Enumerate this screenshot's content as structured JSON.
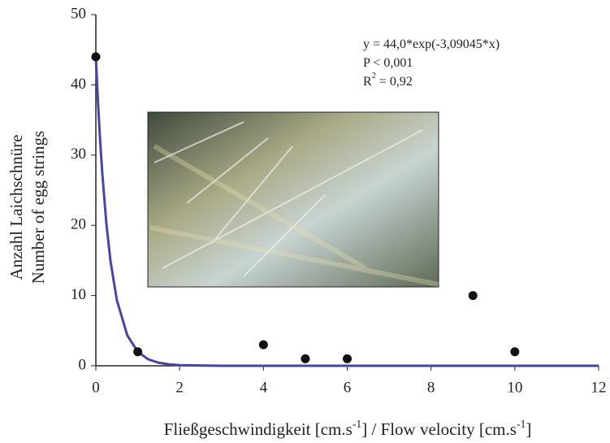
{
  "chart_data": {
    "type": "scatter",
    "y_label": [
      "Anzahl Laichschnüre",
      "Number of egg strings"
    ],
    "x_label": [
      "Fließgeschwindigkeit [cm.s",
      "-1",
      "] / Flow velocity [cm.s",
      "-1",
      "]"
    ],
    "annotation": [
      [
        "y = 44,0*exp(-3,09045*x)"
      ],
      [
        "P < 0,001"
      ],
      [
        "R",
        "2",
        " = 0,92"
      ]
    ],
    "x": [
      0,
      1,
      4,
      5,
      6,
      9,
      10
    ],
    "values": [
      44,
      2,
      3,
      1,
      1,
      10,
      2
    ],
    "color": "#111111",
    "fit": {
      "color": "#4646a6",
      "x": [
        0,
        0.05,
        0.1,
        0.15,
        0.25,
        0.35,
        0.5,
        0.75,
        1,
        1.25,
        1.5,
        1.75,
        2,
        3,
        12
      ],
      "values": [
        44,
        37.7,
        32.3,
        27.7,
        20.32,
        14.9,
        9.39,
        4.33,
        2.0,
        0.92,
        0.43,
        0.2,
        0.09,
        0,
        0
      ]
    },
    "xlim": [
      0,
      12
    ],
    "xticks": [
      0,
      2,
      4,
      6,
      8,
      10,
      12
    ],
    "ylim": [
      0,
      50
    ],
    "yticks": [
      0,
      10,
      20,
      30,
      40,
      50
    ],
    "grid": false
  }
}
